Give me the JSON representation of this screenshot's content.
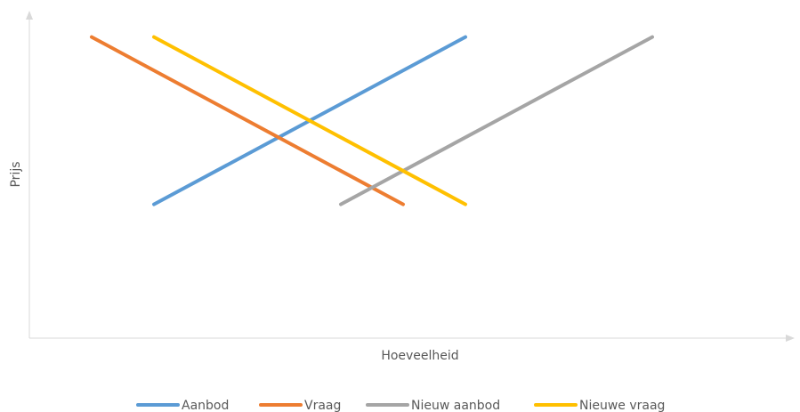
{
  "chart_data": {
    "type": "line",
    "title": "",
    "xlabel": "Hoeveelheid",
    "ylabel": "Prijs",
    "xlim": [
      0,
      12
    ],
    "ylim": [
      0,
      10
    ],
    "grid": false,
    "legend": "bottom",
    "series": [
      {
        "name": "Aanbod",
        "color": "#5B9BD5",
        "points": [
          {
            "x": 2,
            "y": 4
          },
          {
            "x": 7,
            "y": 9
          }
        ]
      },
      {
        "name": "Vraag",
        "color": "#ED7D31",
        "points": [
          {
            "x": 1,
            "y": 9
          },
          {
            "x": 6,
            "y": 4
          }
        ]
      },
      {
        "name": "Nieuw aanbod",
        "color": "#A5A5A5",
        "points": [
          {
            "x": 5,
            "y": 4
          },
          {
            "x": 10,
            "y": 9
          }
        ]
      },
      {
        "name": "Nieuwe vraag",
        "color": "#FFC000",
        "points": [
          {
            "x": 2,
            "y": 9
          },
          {
            "x": 7,
            "y": 4
          }
        ]
      }
    ]
  }
}
